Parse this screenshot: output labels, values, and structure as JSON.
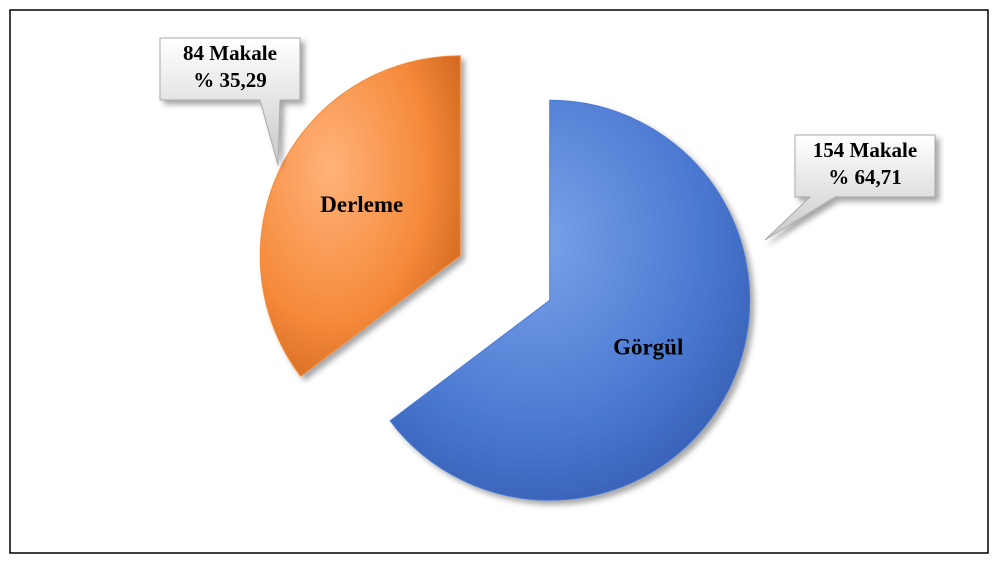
{
  "chart_data": {
    "type": "pie",
    "categories": [
      "Derleme",
      "Görgül"
    ],
    "values": [
      84,
      154
    ],
    "value_labels": [
      "84 Makale",
      "154 Makale"
    ],
    "percent_labels": [
      "% 35,29",
      "% 64,71"
    ],
    "colors": [
      "#f58a3a",
      "#4a78d0"
    ]
  }
}
